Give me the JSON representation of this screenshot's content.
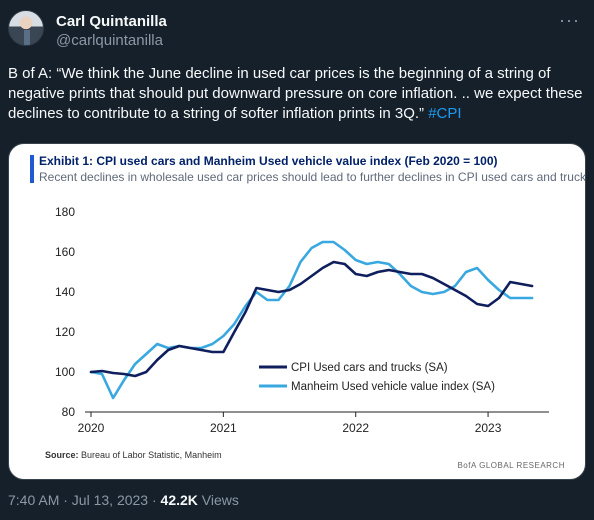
{
  "author": {
    "name": "Carl Quintanilla",
    "handle": "@carlquintanilla"
  },
  "tweet": {
    "text": "B of A: “We think the June decline in used car prices is the beginning of a string of negative prints that should put downward pressure on core inflation. .. we expect these declines to contribute to a string of softer inflation prints in 3Q.”",
    "hashtag": "#CPI"
  },
  "media": {
    "title": "Exhibit 1: CPI used cars and Manheim Used vehicle value index (Feb 2020 = 100)",
    "subtitle": "Recent declines in wholesale used car prices should lead to further declines in CPI used cars and trucks",
    "source_label": "Source:",
    "source_text": "Bureau of Labor Statistic, Manheim",
    "brand": "BofA GLOBAL RESEARCH"
  },
  "chart_data": {
    "type": "line",
    "title": "Exhibit 1: CPI used cars and Manheim Used vehicle value index (Feb 2020 = 100)",
    "xlabel": "",
    "ylabel": "",
    "ylim": [
      80,
      180
    ],
    "yticks": [
      80,
      100,
      120,
      140,
      160,
      180
    ],
    "xlim": [
      2020,
      2023.4
    ],
    "xticks": [
      2020,
      2021,
      2022,
      2023
    ],
    "grid": false,
    "legend_position": "lower-right",
    "series": [
      {
        "name": "CPI Used cars and trucks (SA)",
        "color": "#0f1e5c",
        "x": [
          2020.0,
          2020.083,
          2020.167,
          2020.25,
          2020.333,
          2020.417,
          2020.5,
          2020.583,
          2020.667,
          2020.75,
          2020.833,
          2020.917,
          2021.0,
          2021.083,
          2021.167,
          2021.25,
          2021.333,
          2021.417,
          2021.5,
          2021.583,
          2021.667,
          2021.75,
          2021.833,
          2021.917,
          2022.0,
          2022.083,
          2022.167,
          2022.25,
          2022.333,
          2022.417,
          2022.5,
          2022.583,
          2022.667,
          2022.75,
          2022.833,
          2022.917,
          2023.0,
          2023.083,
          2023.167,
          2023.25,
          2023.333
        ],
        "y": [
          100,
          100.5,
          99.5,
          99,
          98,
          100,
          106,
          111,
          113,
          112,
          111,
          110,
          110,
          120,
          130,
          142,
          141,
          140,
          141,
          144,
          148,
          152,
          155,
          154,
          149,
          148,
          150,
          151,
          150,
          149,
          149,
          147,
          144,
          141,
          138,
          134,
          133,
          137,
          145,
          144,
          143
        ]
      },
      {
        "name": "Manheim Used vehicle value index (SA)",
        "color": "#3aa8e0",
        "x": [
          2020.0,
          2020.083,
          2020.167,
          2020.25,
          2020.333,
          2020.417,
          2020.5,
          2020.583,
          2020.667,
          2020.75,
          2020.833,
          2020.917,
          2021.0,
          2021.083,
          2021.167,
          2021.25,
          2021.333,
          2021.417,
          2021.5,
          2021.583,
          2021.667,
          2021.75,
          2021.833,
          2021.917,
          2022.0,
          2022.083,
          2022.167,
          2022.25,
          2022.333,
          2022.417,
          2022.5,
          2022.583,
          2022.667,
          2022.75,
          2022.833,
          2022.917,
          2023.0,
          2023.083,
          2023.167,
          2023.25,
          2023.333
        ],
        "y": [
          100,
          99,
          87,
          96,
          104,
          109,
          114,
          112,
          113,
          112,
          112,
          114,
          118,
          124,
          133,
          140,
          136,
          136,
          143,
          155,
          162,
          165,
          165,
          161,
          156,
          154,
          155,
          154,
          149,
          143,
          140,
          139,
          140,
          143,
          150,
          152,
          146,
          141,
          137,
          137,
          137
        ]
      }
    ]
  },
  "meta": {
    "timestamp": "7:40 AM · Jul 13, 2023 ·",
    "views_count": "42.2K",
    "views_label": "Views"
  }
}
